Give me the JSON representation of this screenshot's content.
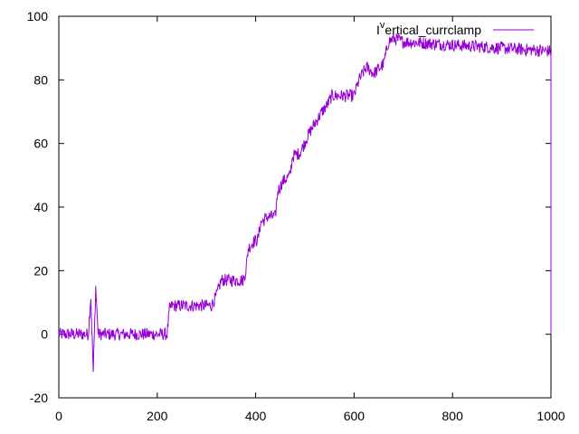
{
  "chart_data": {
    "type": "line",
    "title": "",
    "xlabel": "",
    "ylabel": "",
    "xlim": [
      0,
      1000
    ],
    "ylim": [
      -20,
      100
    ],
    "xticks": [
      0,
      200,
      400,
      600,
      800,
      1000
    ],
    "yticks": [
      -20,
      0,
      20,
      40,
      60,
      80,
      100
    ],
    "xtick_labels": [
      "0",
      "200",
      "400",
      "600",
      "800",
      "1000"
    ],
    "ytick_labels": [
      "-20",
      "0",
      "20",
      "40",
      "60",
      "80",
      "100"
    ],
    "grid": false,
    "legend": {
      "position": "top-right"
    },
    "series": [
      {
        "name": "I^vertical_currclamp",
        "legend_base": "I",
        "legend_sup": "v",
        "legend_rest": "ertical_currclamp",
        "color": "#9400d3",
        "noise_amplitude": 2,
        "x": [
          0,
          60,
          65,
          70,
          75,
          80,
          100,
          220,
          225,
          230,
          310,
          320,
          330,
          375,
          380,
          385,
          395,
          405,
          410,
          425,
          440,
          445,
          455,
          470,
          475,
          490,
          505,
          515,
          535,
          545,
          555,
          575,
          600,
          610,
          625,
          640,
          660,
          670,
          680,
          700,
          800,
          900,
          1000
        ],
        "y": [
          0,
          0,
          12,
          -12,
          15,
          0,
          0,
          0,
          8,
          9,
          9,
          12,
          17,
          17,
          20,
          27,
          29,
          30,
          35,
          37,
          37,
          45,
          48,
          50,
          56,
          57,
          62,
          65,
          70,
          72,
          75,
          75,
          75,
          80,
          84,
          82,
          85,
          92,
          93,
          92,
          91,
          90,
          89
        ]
      }
    ]
  }
}
